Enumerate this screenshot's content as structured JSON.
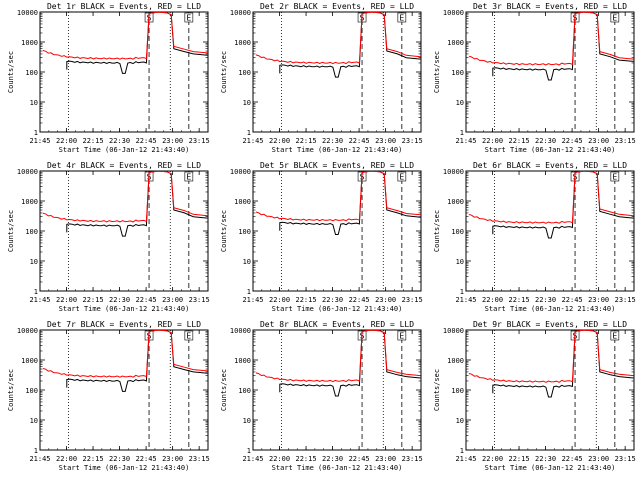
{
  "chart_data": {
    "type": "line",
    "layout": "3x3 grid of panels",
    "x_axis": {
      "label": "Start Time (06-Jan-12 21:43:40)",
      "ticks": [
        "21:45",
        "22:00",
        "22:15",
        "22:30",
        "22:45",
        "23:00",
        "23:15"
      ],
      "tick_minutes": [
        -1.667,
        13.333,
        28.333,
        43.333,
        58.333,
        73.333,
        88.333
      ],
      "range_minutes": [
        -1.667,
        93.333
      ],
      "note": "x in minutes after 21:43:40"
    },
    "y_axis": {
      "label": "Counts/sec",
      "scale": "log",
      "ticks": [
        "1",
        "10",
        "100",
        "1000",
        "10000"
      ],
      "range": [
        1,
        10000
      ]
    },
    "markers": {
      "dotted_lines_minutes": [
        14.5,
        72.0
      ],
      "dashed_lines_minutes": [
        60.0,
        82.5
      ],
      "labels": [
        "S",
        "E"
      ]
    },
    "series_legend": {
      "black": "Events",
      "red": "LLD"
    },
    "panels": [
      {
        "title": "Det 1r BLACK = Events, RED = LLD",
        "events_base": 200,
        "lld_base": 280,
        "saa_peak": 9000,
        "late": [
          600,
          400
        ]
      },
      {
        "title": "Det 2r BLACK = Events, RED = LLD",
        "events_base": 150,
        "lld_base": 200,
        "saa_peak": 9000,
        "late": [
          500,
          300
        ]
      },
      {
        "title": "Det 3r BLACK = Events, RED = LLD",
        "events_base": 120,
        "lld_base": 180,
        "saa_peak": 9000,
        "late": [
          400,
          250
        ]
      },
      {
        "title": "Det 4r BLACK = Events, RED = LLD",
        "events_base": 150,
        "lld_base": 210,
        "saa_peak": 9000,
        "late": [
          500,
          300
        ]
      },
      {
        "title": "Det 5r BLACK = Events, RED = LLD",
        "events_base": 170,
        "lld_base": 230,
        "saa_peak": 9000,
        "late": [
          500,
          320
        ]
      },
      {
        "title": "Det 6r BLACK = Events, RED = LLD",
        "events_base": 130,
        "lld_base": 190,
        "saa_peak": 9000,
        "late": [
          450,
          300
        ]
      },
      {
        "title": "Det 7r BLACK = Events, RED = LLD",
        "events_base": 200,
        "lld_base": 280,
        "saa_peak": 9000,
        "late": [
          600,
          400
        ]
      },
      {
        "title": "Det 8r BLACK = Events, RED = LLD",
        "events_base": 140,
        "lld_base": 200,
        "saa_peak": 9000,
        "late": [
          400,
          280
        ]
      },
      {
        "title": "Det 9r BLACK = Events, RED = LLD",
        "events_base": 130,
        "lld_base": 190,
        "saa_peak": 9000,
        "late": [
          400,
          280
        ]
      }
    ],
    "colors": {
      "events": "#000000",
      "lld": "#ff0000",
      "axes": "#000000"
    }
  }
}
